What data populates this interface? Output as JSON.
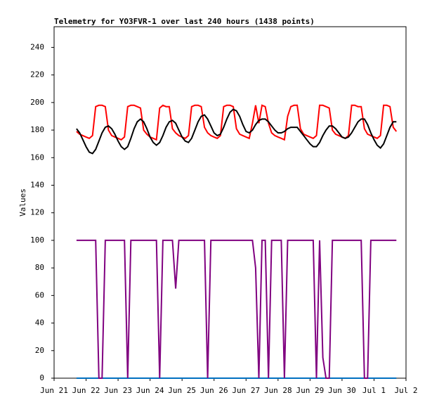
{
  "chart_data": {
    "type": "line",
    "title": "Telemetry for YO3FVR-1 over last 240 hours (1438 points)",
    "ylabel": "Values",
    "xlim": [
      0,
      11
    ],
    "xticks": [
      {
        "value": 0,
        "label": "Jun 21"
      },
      {
        "value": 1,
        "label": "Jun 22"
      },
      {
        "value": 2,
        "label": "Jun 23"
      },
      {
        "value": 3,
        "label": "Jun 24"
      },
      {
        "value": 4,
        "label": "Jun 25"
      },
      {
        "value": 5,
        "label": "Jun 26"
      },
      {
        "value": 6,
        "label": "Jun 27"
      },
      {
        "value": 7,
        "label": "Jun 28"
      },
      {
        "value": 8,
        "label": "Jun 29"
      },
      {
        "value": 9,
        "label": "Jun 30"
      },
      {
        "value": 10,
        "label": "Jul 1"
      },
      {
        "value": 11,
        "label": "Jul 2"
      }
    ],
    "ylim": [
      0,
      255
    ],
    "yticks": [
      0,
      20,
      40,
      60,
      80,
      100,
      120,
      140,
      160,
      180,
      200,
      220,
      240
    ],
    "x": [
      0.7,
      0.8,
      0.9,
      1.0,
      1.1,
      1.2,
      1.3,
      1.4,
      1.5,
      1.6,
      1.7,
      1.8,
      1.9,
      2.0,
      2.1,
      2.2,
      2.3,
      2.4,
      2.5,
      2.6,
      2.7,
      2.8,
      2.9,
      3.0,
      3.1,
      3.2,
      3.3,
      3.4,
      3.5,
      3.6,
      3.7,
      3.8,
      3.9,
      4.0,
      4.1,
      4.2,
      4.3,
      4.4,
      4.5,
      4.6,
      4.7,
      4.8,
      4.9,
      5.0,
      5.1,
      5.2,
      5.3,
      5.4,
      5.5,
      5.6,
      5.7,
      5.8,
      5.9,
      6.0,
      6.1,
      6.2,
      6.3,
      6.4,
      6.5,
      6.6,
      6.7,
      6.8,
      6.9,
      7.0,
      7.1,
      7.2,
      7.3,
      7.4,
      7.5,
      7.6,
      7.7,
      7.8,
      7.9,
      8.0,
      8.1,
      8.2,
      8.3,
      8.4,
      8.5,
      8.6,
      8.7,
      8.8,
      8.9,
      9.0,
      9.1,
      9.2,
      9.3,
      9.4,
      9.5,
      9.6,
      9.7,
      9.8,
      9.9,
      10.0,
      10.1,
      10.2,
      10.3,
      10.4,
      10.5,
      10.6,
      10.7
    ],
    "series": [
      {
        "color": "#0070c0",
        "values": [
          0,
          0,
          0,
          0,
          0,
          0,
          0,
          0,
          0,
          0,
          0,
          0,
          0,
          0,
          0,
          0,
          0,
          0,
          0,
          0,
          0,
          0,
          0,
          0,
          0,
          0,
          0,
          0,
          0,
          0,
          0,
          0,
          0,
          0,
          0,
          0,
          0,
          0,
          0,
          0,
          0,
          0,
          0,
          0,
          0,
          0,
          0,
          0,
          0,
          0,
          0,
          0,
          0,
          0,
          0,
          0,
          0,
          0,
          0,
          0,
          0,
          0,
          0,
          0,
          0,
          0,
          0,
          0,
          0,
          0,
          0,
          0,
          0,
          0,
          0,
          0,
          0,
          0,
          0,
          0,
          0,
          0,
          0,
          0,
          0,
          0,
          0,
          0,
          0,
          0,
          0,
          0,
          0,
          0,
          0,
          0,
          0,
          0,
          0,
          0,
          0
        ]
      },
      {
        "color": "#800080",
        "values": [
          100,
          100,
          100,
          100,
          100,
          100,
          100,
          0,
          0,
          100,
          100,
          100,
          100,
          100,
          100,
          100,
          0,
          100,
          100,
          100,
          100,
          100,
          100,
          100,
          100,
          100,
          0,
          100,
          100,
          100,
          100,
          65,
          100,
          100,
          100,
          100,
          100,
          100,
          100,
          100,
          100,
          0,
          100,
          100,
          100,
          100,
          100,
          100,
          100,
          100,
          100,
          100,
          100,
          100,
          100,
          100,
          80,
          0,
          100,
          100,
          0,
          100,
          100,
          100,
          100,
          0,
          100,
          100,
          100,
          100,
          100,
          100,
          100,
          100,
          100,
          0,
          100,
          15,
          0,
          0,
          100,
          100,
          100,
          100,
          100,
          100,
          100,
          100,
          100,
          100,
          0,
          0,
          100,
          100,
          100,
          100,
          100,
          100,
          100,
          100,
          100
        ]
      },
      {
        "color": "#ff0000",
        "values": [
          179,
          177,
          176,
          175,
          174,
          176,
          197,
          198,
          198,
          197,
          180,
          176,
          175,
          174,
          173,
          175,
          197,
          198,
          198,
          197,
          196,
          180,
          177,
          175,
          174,
          173,
          196,
          198,
          197,
          197,
          181,
          178,
          176,
          175,
          174,
          176,
          197,
          198,
          198,
          197,
          182,
          178,
          176,
          175,
          174,
          176,
          197,
          198,
          198,
          197,
          181,
          177,
          176,
          175,
          174,
          185,
          198,
          185,
          198,
          197,
          185,
          178,
          176,
          175,
          174,
          173,
          190,
          197,
          198,
          198,
          181,
          177,
          176,
          175,
          174,
          176,
          198,
          198,
          197,
          196,
          180,
          177,
          176,
          175,
          174,
          176,
          198,
          198,
          197,
          197,
          181,
          177,
          176,
          175,
          174,
          176,
          198,
          198,
          197,
          182,
          179
        ]
      },
      {
        "color": "#000000",
        "values": [
          181,
          178,
          173,
          168,
          164,
          163,
          166,
          172,
          178,
          182,
          183,
          181,
          177,
          172,
          168,
          166,
          168,
          174,
          181,
          186,
          188,
          186,
          181,
          175,
          171,
          169,
          171,
          176,
          182,
          186,
          187,
          185,
          180,
          175,
          172,
          171,
          174,
          180,
          186,
          190,
          191,
          188,
          183,
          178,
          176,
          177,
          182,
          188,
          193,
          195,
          194,
          190,
          184,
          179,
          178,
          180,
          184,
          187,
          188,
          188,
          186,
          183,
          180,
          178,
          178,
          179,
          181,
          182,
          182,
          182,
          179,
          176,
          173,
          170,
          168,
          168,
          171,
          176,
          180,
          183,
          183,
          181,
          178,
          175,
          174,
          175,
          178,
          182,
          186,
          188,
          188,
          184,
          178,
          173,
          169,
          167,
          170,
          176,
          182,
          186,
          186
        ]
      }
    ]
  }
}
